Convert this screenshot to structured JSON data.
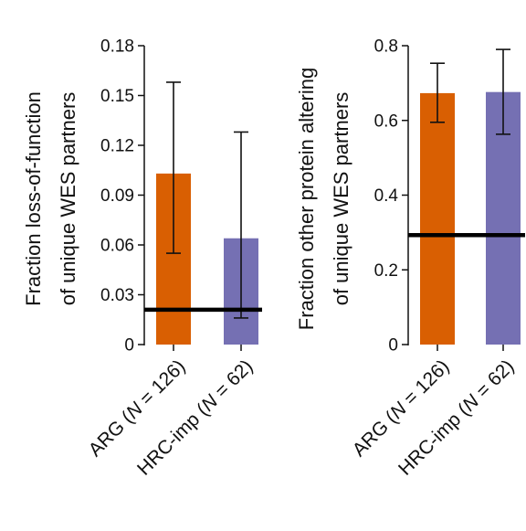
{
  "chart_data": [
    {
      "type": "bar",
      "ylabel": [
        "Fraction loss-of-function",
        "of unique WES partners"
      ],
      "ylim": [
        0,
        0.18
      ],
      "yticks": [
        "0",
        "0.03",
        "0.06",
        "0.09",
        "0.12",
        "0.15",
        "0.18"
      ],
      "ytick_values": [
        0,
        0.03,
        0.06,
        0.09,
        0.12,
        0.15,
        0.18
      ],
      "categories": [
        {
          "prefix": "ARG (",
          "var": "N",
          "suffix": " = 126)"
        },
        {
          "prefix": "HRC-imp (",
          "var": "N",
          "suffix": " = 62)"
        }
      ],
      "values": [
        0.103,
        0.064
      ],
      "error_low": [
        0.055,
        0.016
      ],
      "error_high": [
        0.158,
        0.128
      ],
      "reference_line": 0.021,
      "colors": [
        "#d95f02",
        "#7570b3"
      ]
    },
    {
      "type": "bar",
      "ylabel": [
        "Fraction other protein altering",
        "of unique WES partners"
      ],
      "ylim": [
        0,
        0.8
      ],
      "yticks": [
        "0",
        "0.2",
        "0.4",
        "0.6",
        "0.8"
      ],
      "ytick_values": [
        0,
        0.2,
        0.4,
        0.6,
        0.8
      ],
      "categories": [
        {
          "prefix": "ARG (",
          "var": "N",
          "suffix": " = 126)"
        },
        {
          "prefix": "HRC-imp (",
          "var": "N",
          "suffix": " = 62)"
        }
      ],
      "values": [
        0.673,
        0.676
      ],
      "error_low": [
        0.595,
        0.563
      ],
      "error_high": [
        0.753,
        0.79
      ],
      "reference_line": 0.293,
      "colors": [
        "#d95f02",
        "#7570b3"
      ]
    }
  ]
}
